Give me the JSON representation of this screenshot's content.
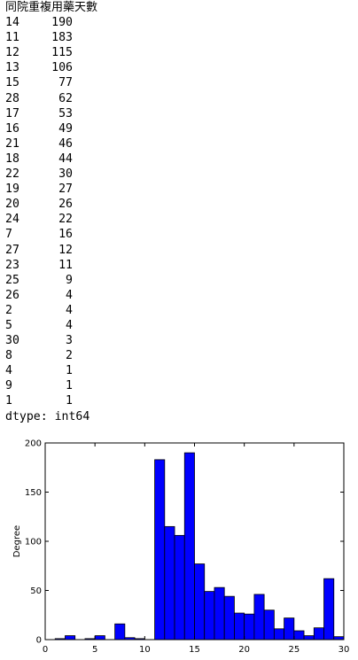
{
  "output": {
    "series_name": "同院重複用藥天數",
    "rows": [
      {
        "key": "14",
        "value": "190"
      },
      {
        "key": "11",
        "value": "183"
      },
      {
        "key": "12",
        "value": "115"
      },
      {
        "key": "13",
        "value": "106"
      },
      {
        "key": "15",
        "value": "77"
      },
      {
        "key": "28",
        "value": "62"
      },
      {
        "key": "17",
        "value": "53"
      },
      {
        "key": "16",
        "value": "49"
      },
      {
        "key": "21",
        "value": "46"
      },
      {
        "key": "18",
        "value": "44"
      },
      {
        "key": "22",
        "value": "30"
      },
      {
        "key": "19",
        "value": "27"
      },
      {
        "key": "20",
        "value": "26"
      },
      {
        "key": "24",
        "value": "22"
      },
      {
        "key": "7",
        "value": "16"
      },
      {
        "key": "27",
        "value": "12"
      },
      {
        "key": "23",
        "value": "11"
      },
      {
        "key": "25",
        "value": "9"
      },
      {
        "key": "26",
        "value": "4"
      },
      {
        "key": "2",
        "value": "4"
      },
      {
        "key": "5",
        "value": "4"
      },
      {
        "key": "30",
        "value": "3"
      },
      {
        "key": "8",
        "value": "2"
      },
      {
        "key": "4",
        "value": "1"
      },
      {
        "key": "9",
        "value": "1"
      },
      {
        "key": "1",
        "value": "1"
      }
    ],
    "dtype": "dtype: int64"
  },
  "chart_data": {
    "type": "bar",
    "title": "",
    "xlabel": "",
    "ylabel": "Degree",
    "xlim": [
      0,
      30
    ],
    "ylim": [
      0,
      200
    ],
    "xticks": [
      0,
      5,
      10,
      15,
      20,
      25,
      30
    ],
    "yticks": [
      0,
      50,
      100,
      150,
      200
    ],
    "bar_color": "#0000ff",
    "bins": [
      {
        "x0": 1.0,
        "x1": 2.0,
        "value": 1
      },
      {
        "x0": 2.0,
        "x1": 3.0,
        "value": 4
      },
      {
        "x0": 4.0,
        "x1": 5.0,
        "value": 1
      },
      {
        "x0": 5.0,
        "x1": 6.0,
        "value": 4
      },
      {
        "x0": 7.0,
        "x1": 8.0,
        "value": 16
      },
      {
        "x0": 8.0,
        "x1": 9.0,
        "value": 2
      },
      {
        "x0": 9.0,
        "x1": 10.0,
        "value": 1
      },
      {
        "x0": 11.0,
        "x1": 12.0,
        "value": 183
      },
      {
        "x0": 12.0,
        "x1": 13.0,
        "value": 115
      },
      {
        "x0": 13.0,
        "x1": 14.0,
        "value": 106
      },
      {
        "x0": 14.0,
        "x1": 15.0,
        "value": 190
      },
      {
        "x0": 15.0,
        "x1": 16.0,
        "value": 77
      },
      {
        "x0": 16.0,
        "x1": 17.0,
        "value": 49
      },
      {
        "x0": 17.0,
        "x1": 18.0,
        "value": 53
      },
      {
        "x0": 18.0,
        "x1": 19.0,
        "value": 44
      },
      {
        "x0": 19.0,
        "x1": 20.0,
        "value": 27
      },
      {
        "x0": 20.0,
        "x1": 21.0,
        "value": 26
      },
      {
        "x0": 21.0,
        "x1": 22.0,
        "value": 46
      },
      {
        "x0": 22.0,
        "x1": 23.0,
        "value": 30
      },
      {
        "x0": 23.0,
        "x1": 24.0,
        "value": 11
      },
      {
        "x0": 24.0,
        "x1": 25.0,
        "value": 22
      },
      {
        "x0": 25.0,
        "x1": 26.0,
        "value": 9
      },
      {
        "x0": 26.0,
        "x1": 27.0,
        "value": 4
      },
      {
        "x0": 27.0,
        "x1": 28.0,
        "value": 12
      },
      {
        "x0": 28.0,
        "x1": 29.0,
        "value": 62
      },
      {
        "x0": 29.0,
        "x1": 30.0,
        "value": 3
      }
    ]
  }
}
